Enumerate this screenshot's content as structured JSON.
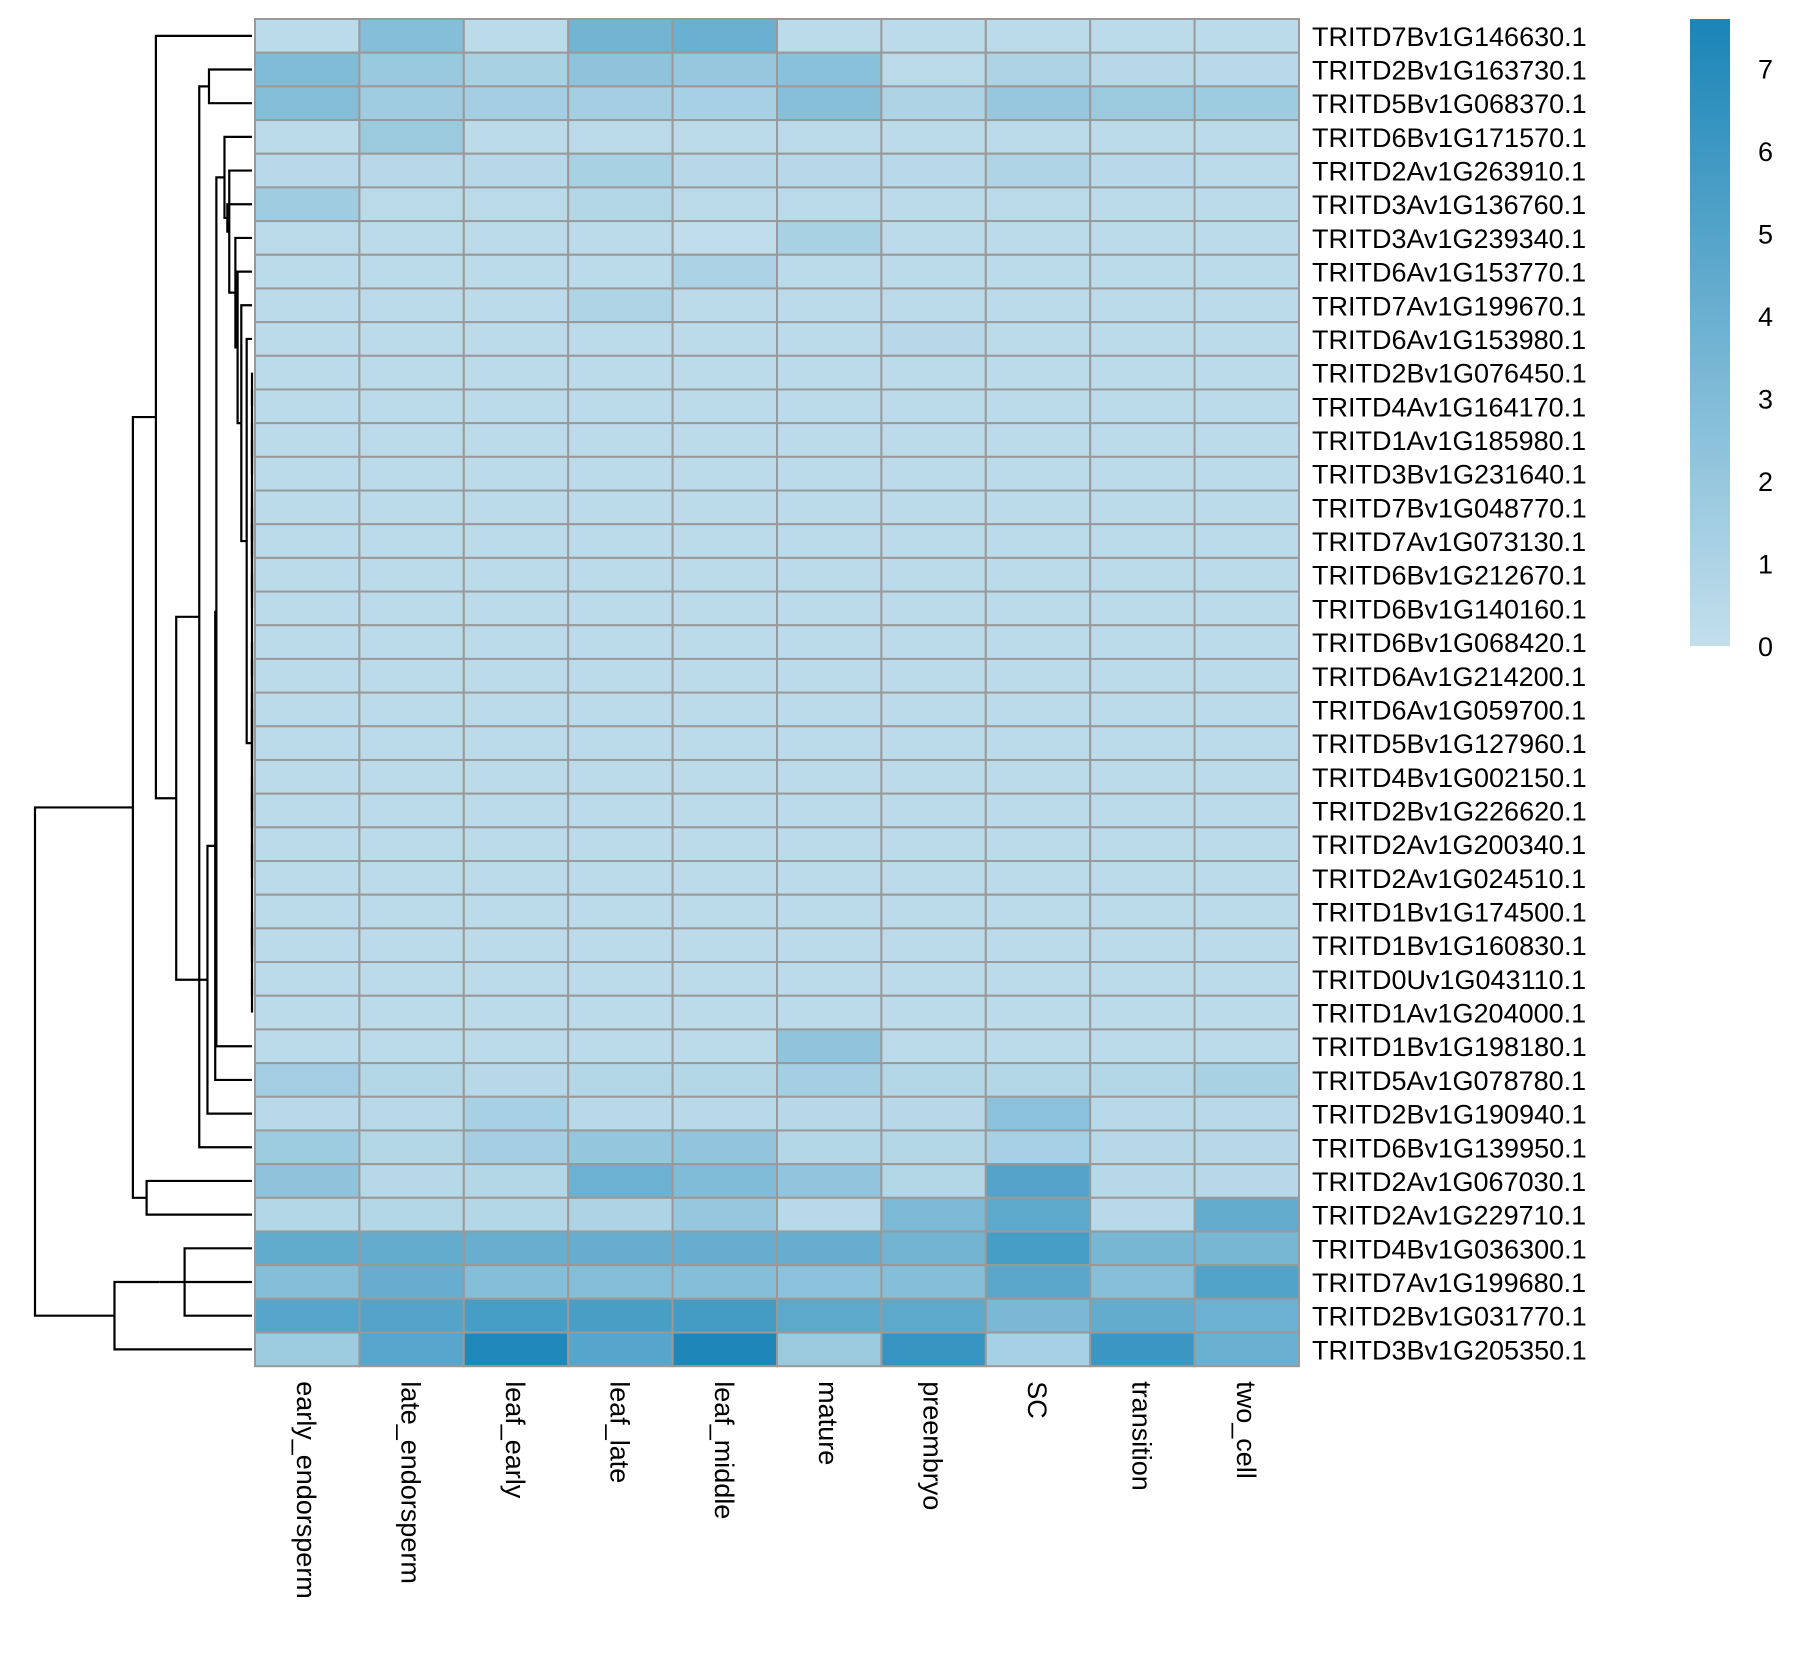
{
  "chart_data": {
    "type": "heatmap",
    "title": "",
    "xlabel": "",
    "ylabel": "",
    "columns": [
      "early_endorsperm",
      "late_endorsperm",
      "leaf_early",
      "leaf_late",
      "leaf_middle",
      "mature",
      "preembryo",
      "SC",
      "transition",
      "two_cell"
    ],
    "rows": [
      "TRITD7Bv1G146630.1",
      "TRITD2Bv1G163730.1",
      "TRITD5Bv1G068370.1",
      "TRITD6Bv1G171570.1",
      "TRITD2Av1G263910.1",
      "TRITD3Av1G136760.1",
      "TRITD3Av1G239340.1",
      "TRITD6Av1G153770.1",
      "TRITD7Av1G199670.1",
      "TRITD6Av1G153980.1",
      "TRITD2Bv1G076450.1",
      "TRITD4Av1G164170.1",
      "TRITD1Av1G185980.1",
      "TRITD3Bv1G231640.1",
      "TRITD7Bv1G048770.1",
      "TRITD7Av1G073130.1",
      "TRITD6Bv1G212670.1",
      "TRITD6Bv1G140160.1",
      "TRITD6Bv1G068420.1",
      "TRITD6Av1G214200.1",
      "TRITD6Av1G059700.1",
      "TRITD5Bv1G127960.1",
      "TRITD4Bv1G002150.1",
      "TRITD2Bv1G226620.1",
      "TRITD2Av1G200340.1",
      "TRITD2Av1G024510.1",
      "TRITD1Bv1G174500.1",
      "TRITD1Bv1G160830.1",
      "TRITD0Uv1G043110.1",
      "TRITD1Av1G204000.1",
      "TRITD1Bv1G198180.1",
      "TRITD5Av1G078780.1",
      "TRITD2Bv1G190940.1",
      "TRITD6Bv1G139950.1",
      "TRITD2Av1G067030.1",
      "TRITD2Av1G229710.1",
      "TRITD4Bv1G036300.1",
      "TRITD7Av1G199680.1",
      "TRITD2Bv1G031770.1",
      "TRITD3Bv1G205350.1"
    ],
    "values": [
      [
        0.3,
        2.8,
        0.3,
        3.6,
        4.0,
        0.3,
        0.3,
        0.3,
        0.3,
        0.3
      ],
      [
        3.0,
        1.9,
        1.2,
        2.4,
        2.0,
        2.6,
        0.4,
        1.0,
        0.6,
        0.5
      ],
      [
        2.9,
        1.6,
        1.4,
        1.4,
        1.3,
        2.7,
        1.0,
        2.0,
        1.8,
        1.7
      ],
      [
        0.3,
        1.8,
        0.3,
        0.4,
        0.4,
        0.4,
        0.3,
        0.4,
        0.3,
        0.3
      ],
      [
        0.5,
        0.6,
        0.6,
        1.2,
        0.6,
        0.6,
        0.5,
        0.9,
        0.5,
        0.4
      ],
      [
        1.6,
        0.4,
        0.4,
        0.7,
        0.4,
        0.4,
        0.3,
        0.4,
        0.3,
        0.3
      ],
      [
        0.4,
        0.3,
        0.3,
        0.3,
        0.2,
        1.2,
        0.3,
        0.3,
        0.3,
        0.3
      ],
      [
        0.3,
        0.3,
        0.3,
        0.3,
        1.1,
        0.3,
        0.3,
        0.3,
        0.3,
        0.3
      ],
      [
        0.3,
        0.3,
        0.3,
        0.9,
        0.3,
        0.3,
        0.3,
        0.3,
        0.3,
        0.3
      ],
      [
        0.3,
        0.3,
        0.3,
        0.3,
        0.3,
        0.3,
        0.6,
        0.3,
        0.3,
        0.3
      ],
      [
        0.3,
        0.3,
        0.3,
        0.3,
        0.3,
        0.3,
        0.3,
        0.3,
        0.3,
        0.3
      ],
      [
        0.3,
        0.3,
        0.3,
        0.3,
        0.3,
        0.3,
        0.3,
        0.3,
        0.3,
        0.3
      ],
      [
        0.3,
        0.3,
        0.3,
        0.3,
        0.3,
        0.3,
        0.3,
        0.3,
        0.3,
        0.3
      ],
      [
        0.3,
        0.3,
        0.3,
        0.3,
        0.3,
        0.3,
        0.3,
        0.3,
        0.3,
        0.3
      ],
      [
        0.3,
        0.3,
        0.3,
        0.3,
        0.3,
        0.3,
        0.3,
        0.3,
        0.3,
        0.3
      ],
      [
        0.3,
        0.3,
        0.3,
        0.3,
        0.3,
        0.3,
        0.3,
        0.3,
        0.3,
        0.3
      ],
      [
        0.3,
        0.3,
        0.3,
        0.3,
        0.3,
        0.3,
        0.3,
        0.3,
        0.3,
        0.3
      ],
      [
        0.3,
        0.3,
        0.3,
        0.3,
        0.3,
        0.3,
        0.3,
        0.3,
        0.3,
        0.3
      ],
      [
        0.3,
        0.3,
        0.3,
        0.3,
        0.3,
        0.3,
        0.3,
        0.3,
        0.3,
        0.3
      ],
      [
        0.3,
        0.3,
        0.3,
        0.3,
        0.3,
        0.3,
        0.3,
        0.3,
        0.3,
        0.3
      ],
      [
        0.3,
        0.3,
        0.3,
        0.3,
        0.3,
        0.3,
        0.3,
        0.3,
        0.3,
        0.3
      ],
      [
        0.3,
        0.3,
        0.3,
        0.3,
        0.3,
        0.3,
        0.3,
        0.3,
        0.3,
        0.3
      ],
      [
        0.3,
        0.3,
        0.3,
        0.3,
        0.3,
        0.3,
        0.3,
        0.3,
        0.3,
        0.3
      ],
      [
        0.3,
        0.3,
        0.3,
        0.3,
        0.3,
        0.3,
        0.3,
        0.3,
        0.3,
        0.3
      ],
      [
        0.3,
        0.3,
        0.3,
        0.3,
        0.3,
        0.3,
        0.3,
        0.3,
        0.3,
        0.3
      ],
      [
        0.3,
        0.3,
        0.3,
        0.3,
        0.3,
        0.3,
        0.3,
        0.3,
        0.3,
        0.3
      ],
      [
        0.3,
        0.3,
        0.3,
        0.3,
        0.3,
        0.3,
        0.3,
        0.3,
        0.3,
        0.3
      ],
      [
        0.3,
        0.3,
        0.3,
        0.3,
        0.3,
        0.3,
        0.3,
        0.3,
        0.3,
        0.3
      ],
      [
        0.3,
        0.3,
        0.3,
        0.3,
        0.3,
        0.3,
        0.3,
        0.3,
        0.3,
        0.3
      ],
      [
        0.3,
        0.3,
        0.3,
        0.3,
        0.3,
        0.3,
        0.3,
        0.3,
        0.3,
        0.3
      ],
      [
        0.3,
        0.3,
        0.3,
        0.3,
        0.3,
        2.3,
        0.3,
        0.3,
        0.3,
        0.3
      ],
      [
        1.5,
        0.7,
        0.6,
        0.7,
        0.7,
        1.4,
        0.7,
        0.7,
        0.7,
        1.2
      ],
      [
        0.5,
        0.5,
        1.3,
        0.5,
        0.5,
        0.6,
        0.6,
        2.5,
        0.5,
        0.5
      ],
      [
        1.7,
        0.7,
        1.4,
        2.1,
        2.2,
        0.7,
        0.7,
        1.3,
        0.6,
        0.6
      ],
      [
        2.4,
        0.6,
        0.7,
        3.9,
        3.0,
        2.2,
        0.7,
        5.0,
        0.6,
        0.6
      ],
      [
        0.7,
        0.7,
        0.7,
        1.0,
        2.0,
        0.5,
        3.2,
        4.6,
        0.5,
        4.3
      ],
      [
        4.4,
        4.3,
        4.1,
        4.2,
        4.2,
        4.2,
        3.6,
        5.6,
        3.4,
        3.4
      ],
      [
        2.8,
        4.2,
        2.8,
        2.9,
        2.8,
        2.5,
        2.8,
        4.7,
        2.7,
        5.1
      ],
      [
        4.9,
        5.0,
        5.6,
        5.5,
        5.7,
        4.6,
        4.6,
        3.3,
        4.3,
        3.9
      ],
      [
        1.7,
        4.8,
        7.3,
        4.9,
        7.4,
        1.8,
        6.3,
        1.3,
        6.1,
        4.0
      ]
    ],
    "scale": {
      "min": 0,
      "max": 7.6,
      "ticks": [
        0,
        1,
        2,
        3,
        4,
        5,
        6,
        7
      ],
      "color_low": "#c3dfec",
      "color_high": "#1a85b7"
    },
    "cell_border_color": "#999999",
    "row_dendrogram": true
  }
}
